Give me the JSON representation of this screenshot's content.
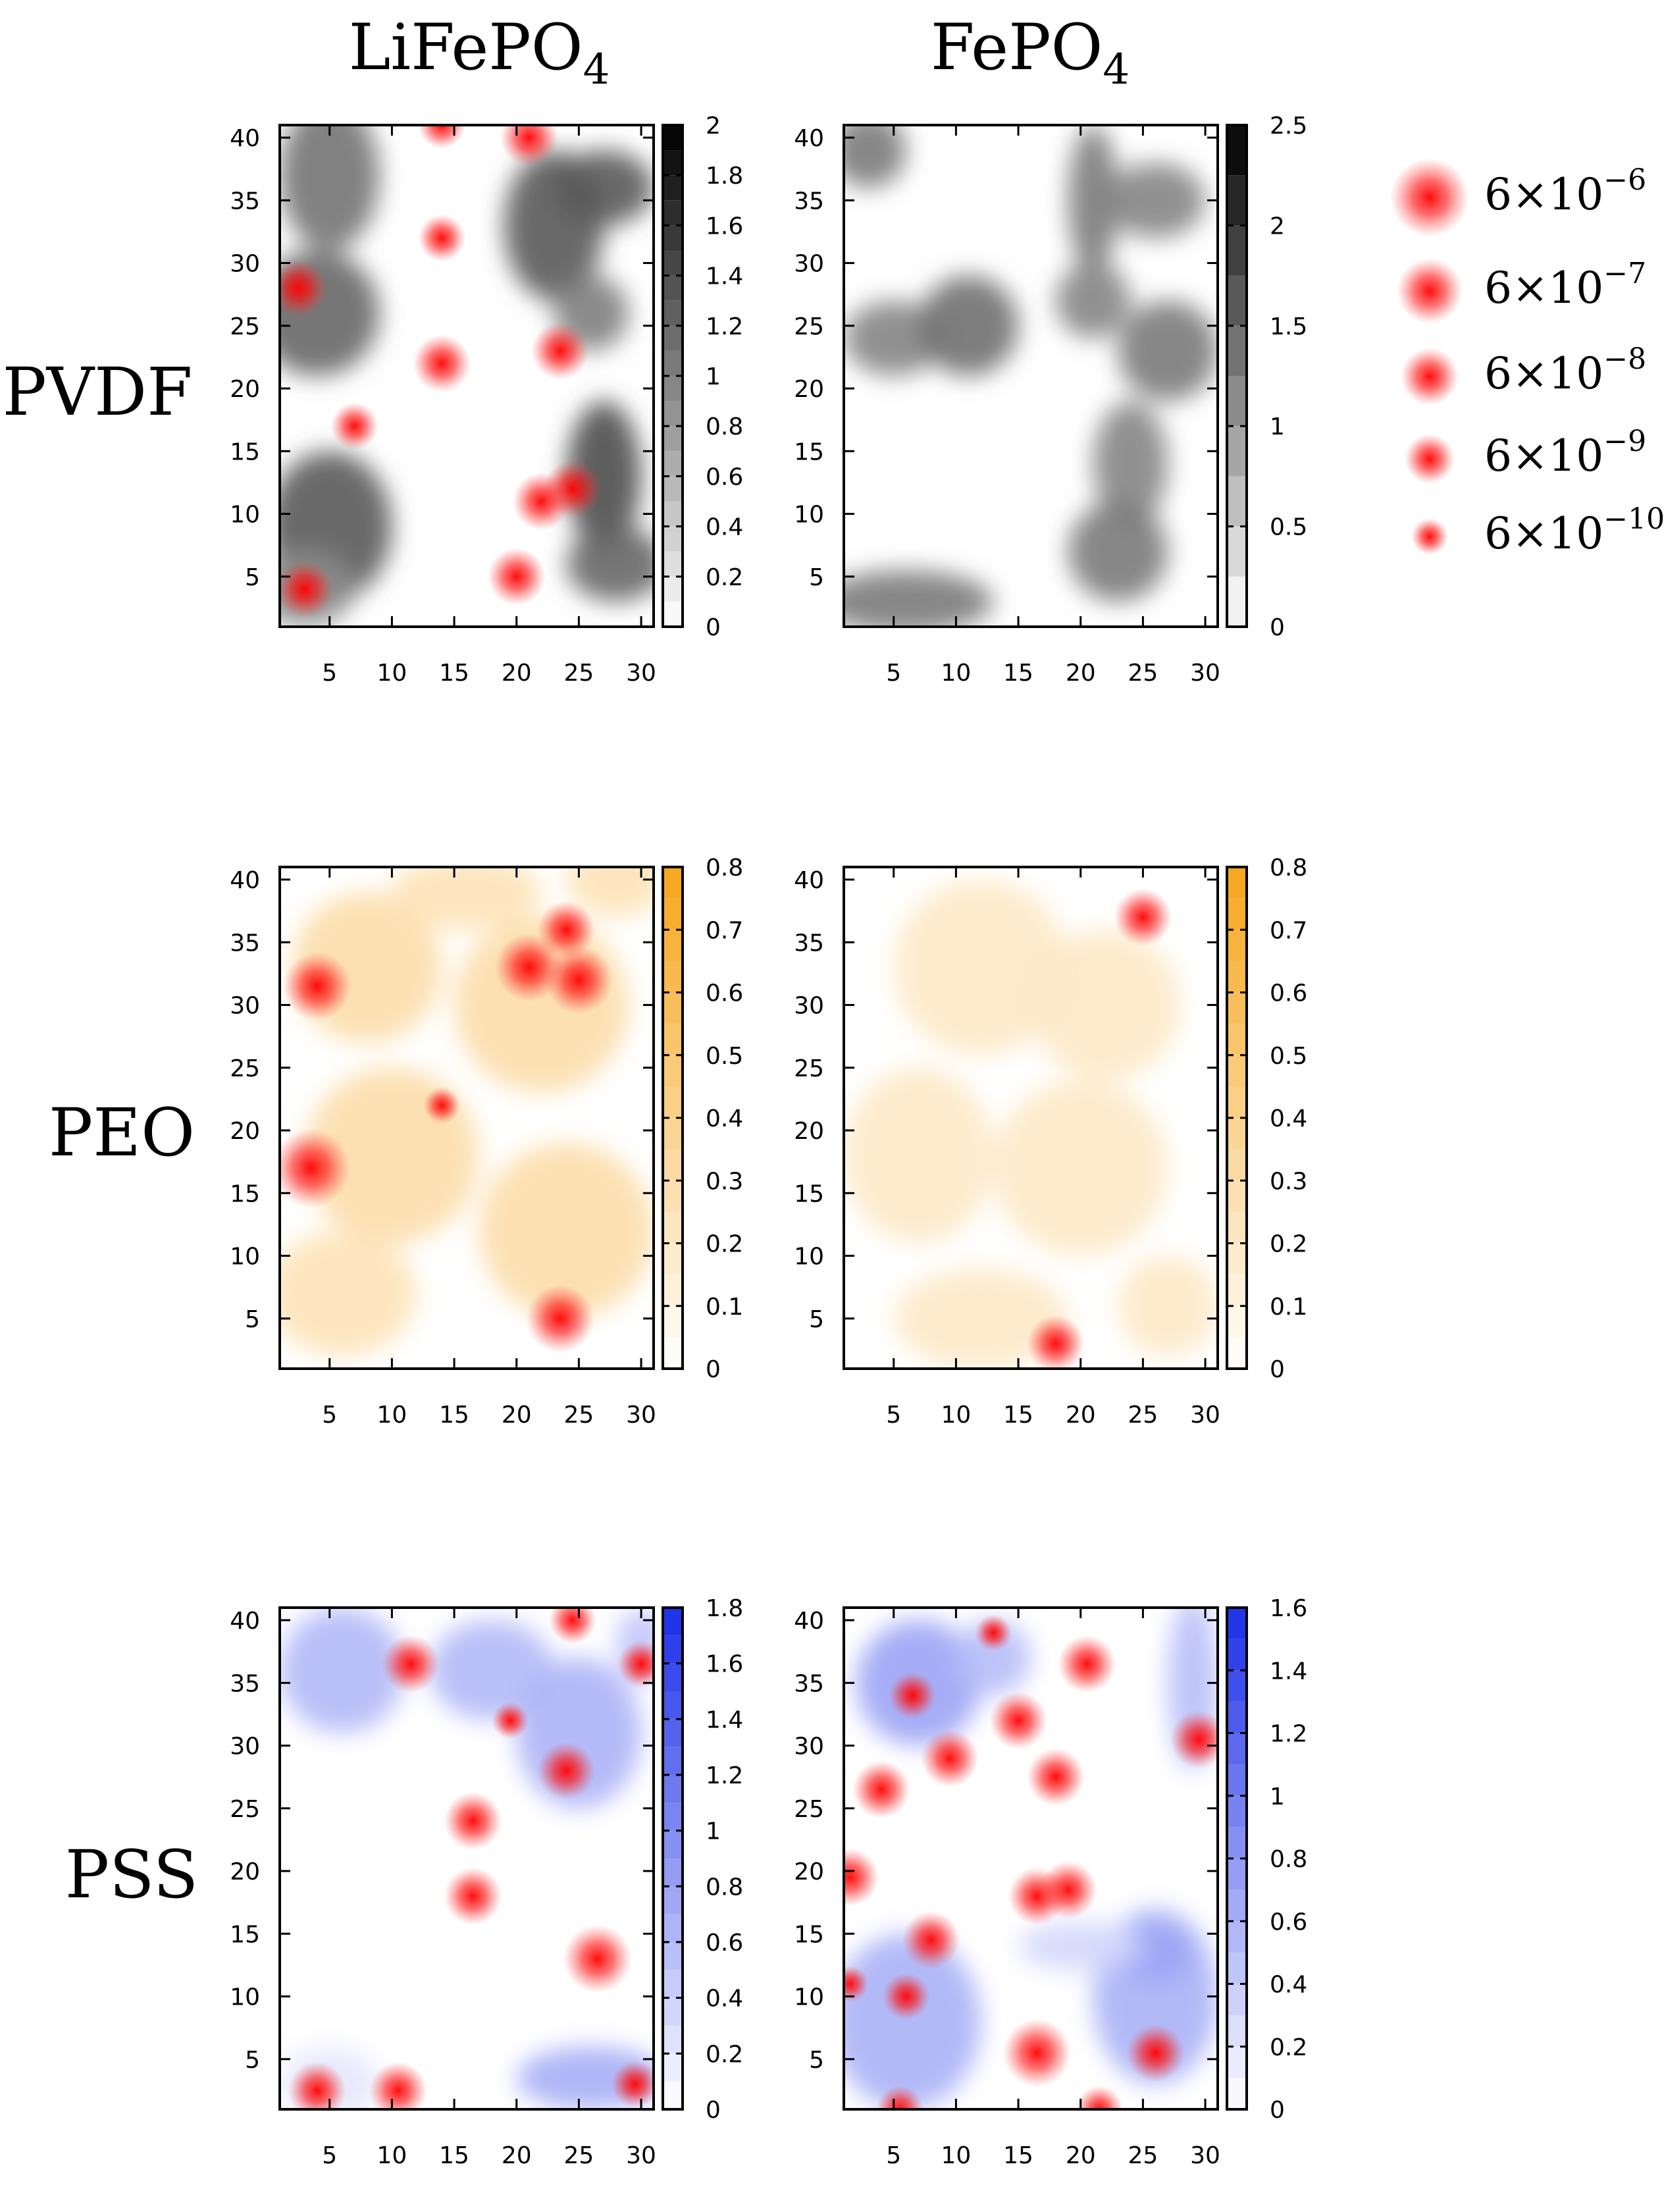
{
  "columns": [
    {
      "label": "LiFePO",
      "sub": "4"
    },
    {
      "label": "FePO",
      "sub": "4"
    }
  ],
  "rows": [
    {
      "label": "PVDF",
      "color": "#000000"
    },
    {
      "label": "PEO",
      "color": "#f7a51c"
    },
    {
      "label": "PSS",
      "color": "#1c2ee8"
    }
  ],
  "legend": [
    {
      "mantissa": "6×10",
      "exp": "−6",
      "value": 6e-06
    },
    {
      "mantissa": "6×10",
      "exp": "−7",
      "value": 6e-07
    },
    {
      "mantissa": "6×10",
      "exp": "−8",
      "value": 6e-08
    },
    {
      "mantissa": "6×10",
      "exp": "−9",
      "value": 6e-09
    },
    {
      "mantissa": "6×10",
      "exp": "−10",
      "value": 6e-10
    }
  ],
  "chart_data": [
    {
      "type": "heatmap",
      "row": "PVDF",
      "column": "LiFePO4",
      "x_ticks": [
        "5",
        "10",
        "15",
        "20",
        "25",
        "30"
      ],
      "y_ticks": [
        "5",
        "10",
        "15",
        "20",
        "25",
        "30",
        "35",
        "40"
      ],
      "xlim": [
        1,
        31
      ],
      "ylim": [
        1,
        41
      ],
      "colorbar": {
        "min": 0,
        "max": 2,
        "ticks": [
          "0",
          "0.2",
          "0.4",
          "0.6",
          "0.8",
          "1",
          "1.2",
          "1.4",
          "1.6",
          "1.8",
          "2"
        ]
      },
      "density_blobs": [
        {
          "x": 5,
          "y": 37,
          "rx": 4,
          "ry": 6,
          "v": 1.1
        },
        {
          "x": 4,
          "y": 26,
          "rx": 5,
          "ry": 5,
          "v": 1.2
        },
        {
          "x": 5,
          "y": 9,
          "rx": 5,
          "ry": 6,
          "v": 1.3
        },
        {
          "x": 3,
          "y": 4,
          "rx": 4,
          "ry": 3,
          "v": 0.9
        },
        {
          "x": 23,
          "y": 33,
          "rx": 4,
          "ry": 6,
          "v": 1.3
        },
        {
          "x": 27,
          "y": 36,
          "rx": 4,
          "ry": 3,
          "v": 1.3
        },
        {
          "x": 26,
          "y": 26,
          "rx": 3,
          "ry": 3,
          "v": 1.0
        },
        {
          "x": 27,
          "y": 13,
          "rx": 3,
          "ry": 6,
          "v": 1.4
        },
        {
          "x": 28,
          "y": 6,
          "rx": 4,
          "ry": 3,
          "v": 1.2
        }
      ],
      "points": [
        {
          "x": 14,
          "y": 41,
          "v": 6e-09
        },
        {
          "x": 21,
          "y": 40,
          "v": 6e-08
        },
        {
          "x": 14,
          "y": 32,
          "v": 6e-09
        },
        {
          "x": 2.5,
          "y": 28,
          "v": 6e-08
        },
        {
          "x": 14,
          "y": 22,
          "v": 6e-08
        },
        {
          "x": 23.5,
          "y": 23,
          "v": 6e-08
        },
        {
          "x": 7,
          "y": 17,
          "v": 6e-09
        },
        {
          "x": 24.5,
          "y": 12,
          "v": 6e-08
        },
        {
          "x": 22,
          "y": 11,
          "v": 6e-08
        },
        {
          "x": 20,
          "y": 5,
          "v": 6e-08
        },
        {
          "x": 3,
          "y": 4,
          "v": 6e-08
        }
      ]
    },
    {
      "type": "heatmap",
      "row": "PVDF",
      "column": "FePO4",
      "x_ticks": [
        "5",
        "10",
        "15",
        "20",
        "25",
        "30"
      ],
      "y_ticks": [
        "5",
        "10",
        "15",
        "20",
        "25",
        "30",
        "35",
        "40"
      ],
      "xlim": [
        1,
        31
      ],
      "ylim": [
        1,
        41
      ],
      "colorbar": {
        "min": 0,
        "max": 2.5,
        "ticks": [
          "0",
          "0.5",
          "1",
          "1.5",
          "2",
          "2.5"
        ]
      },
      "density_blobs": [
        {
          "x": 3,
          "y": 39,
          "rx": 3,
          "ry": 3,
          "v": 1.3
        },
        {
          "x": 5,
          "y": 24,
          "rx": 4,
          "ry": 3,
          "v": 1.2
        },
        {
          "x": 11,
          "y": 25,
          "rx": 4,
          "ry": 4,
          "v": 1.4
        },
        {
          "x": 21,
          "y": 35,
          "rx": 2,
          "ry": 6,
          "v": 1.3
        },
        {
          "x": 26,
          "y": 35,
          "rx": 4,
          "ry": 3,
          "v": 1.2
        },
        {
          "x": 21,
          "y": 27,
          "rx": 3,
          "ry": 3,
          "v": 1.2
        },
        {
          "x": 27,
          "y": 23,
          "rx": 4,
          "ry": 4,
          "v": 1.3
        },
        {
          "x": 24,
          "y": 14,
          "rx": 3,
          "ry": 5,
          "v": 1.2
        },
        {
          "x": 23,
          "y": 7,
          "rx": 4,
          "ry": 4,
          "v": 1.3
        },
        {
          "x": 6,
          "y": 3,
          "rx": 7,
          "ry": 2.5,
          "v": 1.3
        }
      ],
      "points": []
    },
    {
      "type": "heatmap",
      "row": "PEO",
      "column": "LiFePO4",
      "x_ticks": [
        "5",
        "10",
        "15",
        "20",
        "25",
        "30"
      ],
      "y_ticks": [
        "5",
        "10",
        "15",
        "20",
        "25",
        "30",
        "35",
        "40"
      ],
      "xlim": [
        1,
        31
      ],
      "ylim": [
        1,
        41
      ],
      "colorbar": {
        "min": 0,
        "max": 0.8,
        "ticks": [
          "0",
          "0.1",
          "0.2",
          "0.3",
          "0.4",
          "0.5",
          "0.6",
          "0.7",
          "0.8"
        ]
      },
      "density_blobs": [
        {
          "x": 8,
          "y": 33,
          "rx": 6,
          "ry": 6,
          "v": 0.3
        },
        {
          "x": 22,
          "y": 30,
          "rx": 7,
          "ry": 7,
          "v": 0.3
        },
        {
          "x": 10,
          "y": 18,
          "rx": 7,
          "ry": 7,
          "v": 0.3
        },
        {
          "x": 24,
          "y": 12,
          "rx": 7,
          "ry": 7,
          "v": 0.3
        },
        {
          "x": 6,
          "y": 7,
          "rx": 6,
          "ry": 5,
          "v": 0.25
        },
        {
          "x": 28,
          "y": 40,
          "rx": 4,
          "ry": 3,
          "v": 0.25
        },
        {
          "x": 16,
          "y": 39,
          "rx": 6,
          "ry": 3,
          "v": 0.25
        }
      ],
      "points": [
        {
          "x": 24,
          "y": 36,
          "v": 6e-08
        },
        {
          "x": 4,
          "y": 31.5,
          "v": 6e-07
        },
        {
          "x": 21,
          "y": 33,
          "v": 6e-07
        },
        {
          "x": 25,
          "y": 32,
          "v": 6e-07
        },
        {
          "x": 14,
          "y": 22,
          "v": 6e-10
        },
        {
          "x": 3.5,
          "y": 17,
          "v": 6e-06
        },
        {
          "x": 23.5,
          "y": 5,
          "v": 6e-07
        }
      ]
    },
    {
      "type": "heatmap",
      "row": "PEO",
      "column": "FePO4",
      "x_ticks": [
        "5",
        "10",
        "15",
        "20",
        "25",
        "30"
      ],
      "y_ticks": [
        "5",
        "10",
        "15",
        "20",
        "25",
        "30",
        "35",
        "40"
      ],
      "xlim": [
        1,
        31
      ],
      "ylim": [
        1,
        41
      ],
      "colorbar": {
        "min": 0,
        "max": 0.8,
        "ticks": [
          "0",
          "0.1",
          "0.2",
          "0.3",
          "0.4",
          "0.5",
          "0.6",
          "0.7",
          "0.8"
        ]
      },
      "density_blobs": [
        {
          "x": 12,
          "y": 33,
          "rx": 7,
          "ry": 7,
          "v": 0.2
        },
        {
          "x": 22,
          "y": 30,
          "rx": 6,
          "ry": 6,
          "v": 0.2
        },
        {
          "x": 7,
          "y": 18,
          "rx": 6,
          "ry": 7,
          "v": 0.2
        },
        {
          "x": 20,
          "y": 17,
          "rx": 7,
          "ry": 7,
          "v": 0.2
        },
        {
          "x": 12,
          "y": 5,
          "rx": 7,
          "ry": 4,
          "v": 0.2
        },
        {
          "x": 27,
          "y": 6,
          "rx": 4,
          "ry": 4,
          "v": 0.2
        }
      ],
      "points": [
        {
          "x": 25,
          "y": 37,
          "v": 6e-08
        },
        {
          "x": 18,
          "y": 3,
          "v": 6e-08
        }
      ]
    },
    {
      "type": "heatmap",
      "row": "PSS",
      "column": "LiFePO4",
      "x_ticks": [
        "5",
        "10",
        "15",
        "20",
        "25",
        "30"
      ],
      "y_ticks": [
        "5",
        "10",
        "15",
        "20",
        "25",
        "30",
        "35",
        "40"
      ],
      "xlim": [
        1,
        31
      ],
      "ylim": [
        1,
        41
      ],
      "colorbar": {
        "min": 0,
        "max": 1.8,
        "ticks": [
          "0",
          "0.2",
          "0.4",
          "0.6",
          "0.8",
          "1",
          "1.2",
          "1.4",
          "1.6",
          "1.8"
        ]
      },
      "density_blobs": [
        {
          "x": 6,
          "y": 36,
          "rx": 5,
          "ry": 5,
          "v": 0.6
        },
        {
          "x": 18,
          "y": 36,
          "rx": 5,
          "ry": 4,
          "v": 0.6
        },
        {
          "x": 25,
          "y": 31,
          "rx": 5,
          "ry": 6,
          "v": 0.65
        },
        {
          "x": 30,
          "y": 38,
          "rx": 2,
          "ry": 3,
          "v": 0.5
        },
        {
          "x": 26,
          "y": 3.5,
          "rx": 6,
          "ry": 2.5,
          "v": 0.7
        },
        {
          "x": 5,
          "y": 3,
          "rx": 4,
          "ry": 3,
          "v": 0.2
        }
      ],
      "points": [
        {
          "x": 11.5,
          "y": 36.5,
          "v": 6e-08
        },
        {
          "x": 24.5,
          "y": 40,
          "v": 6e-09
        },
        {
          "x": 30,
          "y": 36.5,
          "v": 6e-09
        },
        {
          "x": 19.5,
          "y": 32,
          "v": 6e-10
        },
        {
          "x": 24,
          "y": 28,
          "v": 6e-08
        },
        {
          "x": 16.5,
          "y": 24,
          "v": 6e-08
        },
        {
          "x": 16.5,
          "y": 18,
          "v": 6e-08
        },
        {
          "x": 26.5,
          "y": 13,
          "v": 6e-07
        },
        {
          "x": 4,
          "y": 2.5,
          "v": 6e-08
        },
        {
          "x": 10.5,
          "y": 2.5,
          "v": 6e-08
        },
        {
          "x": 29.5,
          "y": 3,
          "v": 6e-09
        }
      ]
    },
    {
      "type": "heatmap",
      "row": "PSS",
      "column": "FePO4",
      "x_ticks": [
        "5",
        "10",
        "15",
        "20",
        "25",
        "30"
      ],
      "y_ticks": [
        "5",
        "10",
        "15",
        "20",
        "25",
        "30",
        "35",
        "40"
      ],
      "xlim": [
        1,
        31
      ],
      "ylim": [
        1,
        41
      ],
      "colorbar": {
        "min": 0,
        "max": 1.6,
        "ticks": [
          "0",
          "0.2",
          "0.4",
          "0.6",
          "0.8",
          "1",
          "1.2",
          "1.4",
          "1.6"
        ]
      },
      "density_blobs": [
        {
          "x": 7,
          "y": 35,
          "rx": 5,
          "ry": 5,
          "v": 0.7
        },
        {
          "x": 13,
          "y": 37,
          "rx": 3,
          "ry": 3,
          "v": 0.5
        },
        {
          "x": 29,
          "y": 35,
          "rx": 2,
          "ry": 7,
          "v": 0.5
        },
        {
          "x": 6,
          "y": 8,
          "rx": 6,
          "ry": 7,
          "v": 0.6
        },
        {
          "x": 26,
          "y": 10,
          "rx": 5,
          "ry": 7,
          "v": 0.6
        },
        {
          "x": 26,
          "y": 13.5,
          "rx": 3,
          "ry": 2.5,
          "v": 0.7
        },
        {
          "x": 20,
          "y": 14,
          "rx": 5,
          "ry": 2,
          "v": 0.3
        }
      ],
      "points": [
        {
          "x": 13,
          "y": 39,
          "v": 6e-10
        },
        {
          "x": 6.5,
          "y": 34,
          "v": 6e-09
        },
        {
          "x": 20.5,
          "y": 36.5,
          "v": 6e-08
        },
        {
          "x": 15,
          "y": 32,
          "v": 6e-08
        },
        {
          "x": 29.5,
          "y": 30.5,
          "v": 6e-08
        },
        {
          "x": 9.5,
          "y": 29,
          "v": 6e-08
        },
        {
          "x": 18,
          "y": 27.5,
          "v": 6e-08
        },
        {
          "x": 4,
          "y": 26.5,
          "v": 6e-08
        },
        {
          "x": 1.5,
          "y": 19.5,
          "v": 6e-08
        },
        {
          "x": 16.5,
          "y": 18,
          "v": 6e-08
        },
        {
          "x": 19,
          "y": 18.5,
          "v": 6e-08
        },
        {
          "x": 8,
          "y": 14.5,
          "v": 6e-08
        },
        {
          "x": 1.5,
          "y": 11,
          "v": 6e-10
        },
        {
          "x": 6,
          "y": 10,
          "v": 6e-09
        },
        {
          "x": 16.5,
          "y": 5.5,
          "v": 6e-07
        },
        {
          "x": 26,
          "y": 5.5,
          "v": 6e-08
        },
        {
          "x": 5.5,
          "y": 1,
          "v": 6e-09
        },
        {
          "x": 21.5,
          "y": 1,
          "v": 6e-09
        }
      ]
    }
  ]
}
